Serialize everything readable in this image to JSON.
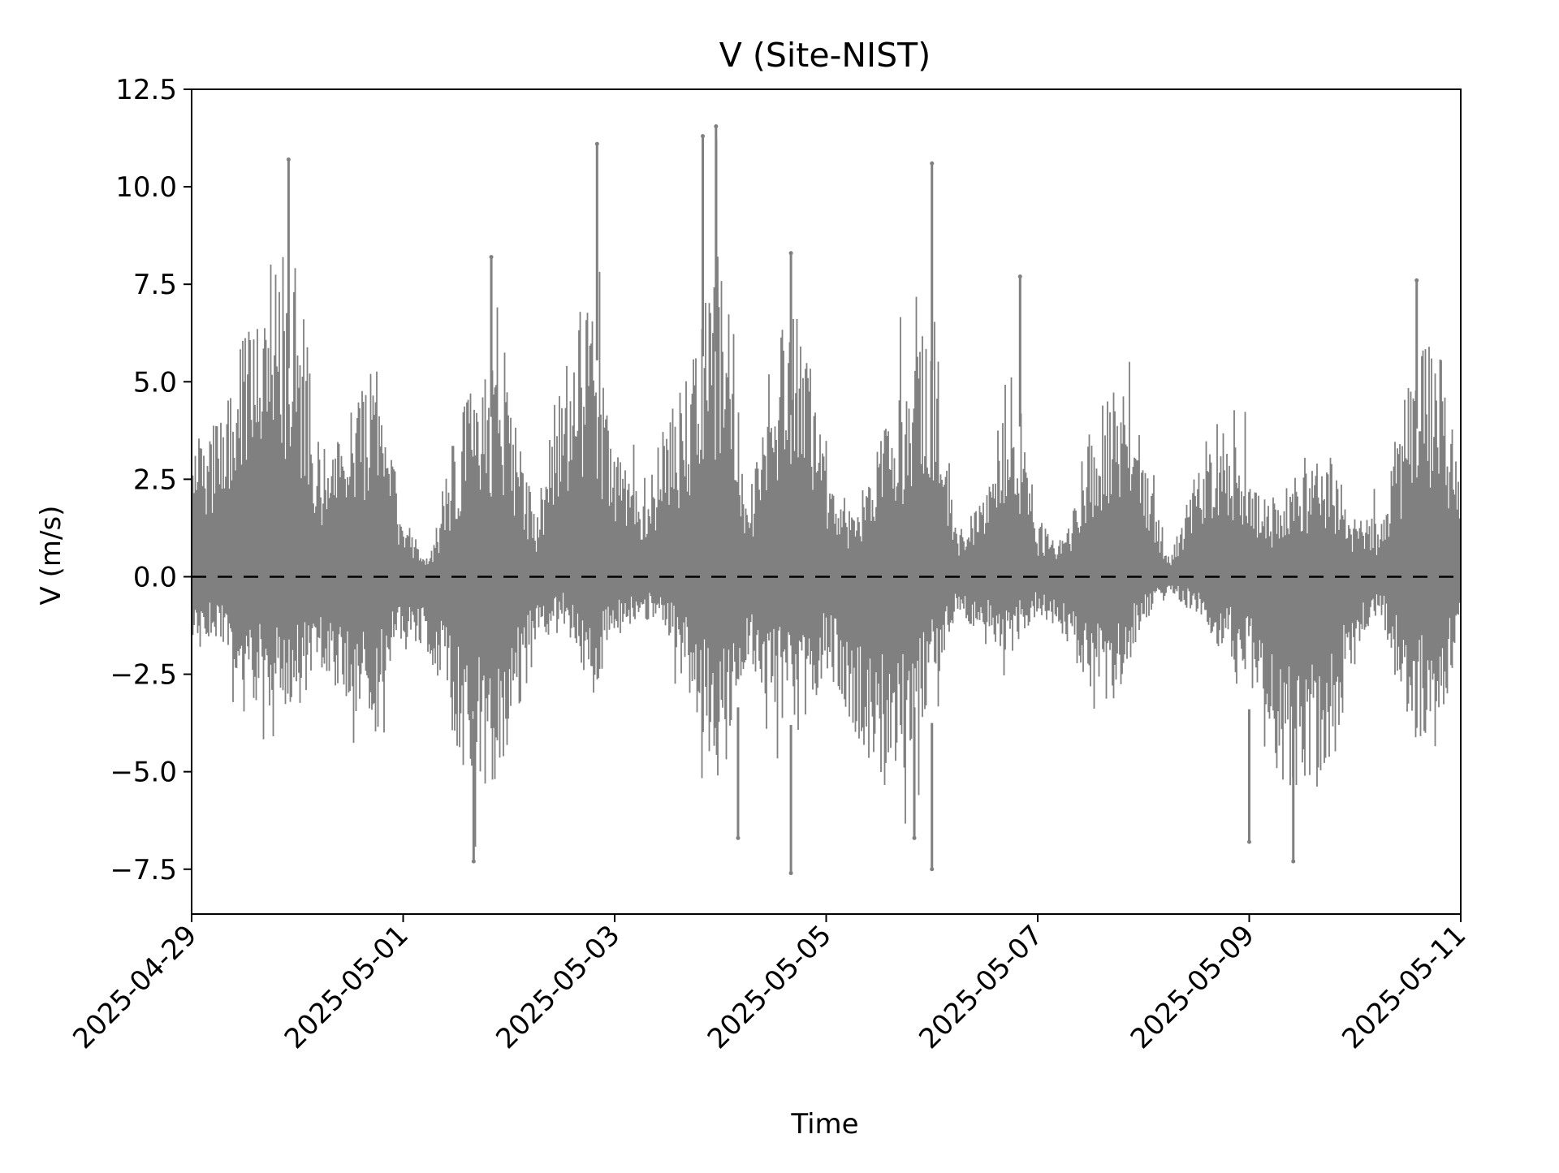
{
  "chart_data": {
    "type": "scatter",
    "title": "V (Site-NIST)",
    "xlabel": "Time",
    "ylabel": "V (m/s)",
    "xlim": [
      "2025-04-29",
      "2025-05-11"
    ],
    "ylim": [
      -8.65,
      12.5
    ],
    "x_ticks": [
      "2025-04-29",
      "2025-05-01",
      "2025-05-03",
      "2025-05-05",
      "2025-05-07",
      "2025-05-09",
      "2025-05-11"
    ],
    "y_ticks": [
      12.5,
      10.0,
      7.5,
      5.0,
      2.5,
      0.0,
      -2.5,
      -5.0,
      -7.5
    ],
    "y_tick_labels": [
      "12.5",
      "10.0",
      "7.5",
      "5.0",
      "2.5",
      "0.0",
      "−2.5",
      "−5.0",
      "−7.5"
    ],
    "reference_line": {
      "y": 0.0,
      "style": "dashed",
      "color": "#000000"
    },
    "series": [
      {
        "color": "#808080",
        "envelope": {
          "t": [
            "2025-04-29T00:00",
            "2025-04-29T06:00",
            "2025-04-29T12:00",
            "2025-04-29T18:00",
            "2025-04-30T00:00",
            "2025-04-30T06:00",
            "2025-04-30T12:00",
            "2025-04-30T18:00",
            "2025-05-01T00:00",
            "2025-05-01T06:00",
            "2025-05-01T12:00",
            "2025-05-01T18:00",
            "2025-05-02T00:00",
            "2025-05-02T06:00",
            "2025-05-02T12:00",
            "2025-05-02T18:00",
            "2025-05-03T00:00",
            "2025-05-03T06:00",
            "2025-05-03T12:00",
            "2025-05-03T18:00",
            "2025-05-04T00:00",
            "2025-05-04T06:00",
            "2025-05-04T12:00",
            "2025-05-04T18:00",
            "2025-05-05T00:00",
            "2025-05-05T06:00",
            "2025-05-05T12:00",
            "2025-05-05T18:00",
            "2025-05-06T00:00",
            "2025-05-06T06:00",
            "2025-05-06T12:00",
            "2025-05-06T18:00",
            "2025-05-07T00:00",
            "2025-05-07T06:00",
            "2025-05-07T12:00",
            "2025-05-07T18:00",
            "2025-05-08T00:00",
            "2025-05-08T06:00",
            "2025-05-08T12:00",
            "2025-05-08T18:00",
            "2025-05-09T00:00",
            "2025-05-09T06:00",
            "2025-05-09T12:00",
            "2025-05-09T18:00",
            "2025-05-10T00:00",
            "2025-05-10T06:00",
            "2025-05-10T12:00",
            "2025-05-10T18:00",
            "2025-05-11T00:00"
          ],
          "upper": [
            3.5,
            4.0,
            6.5,
            8.5,
            8.0,
            2.5,
            4.5,
            5.5,
            1.5,
            0.5,
            4.0,
            5.5,
            5.0,
            1.5,
            5.5,
            7.5,
            3.5,
            2.5,
            4.0,
            6.0,
            9.0,
            2.0,
            6.0,
            7.0,
            3.5,
            1.5,
            3.5,
            5.0,
            7.0,
            1.5,
            2.0,
            6.0,
            1.5,
            1.0,
            4.0,
            5.5,
            3.5,
            0.5,
            3.0,
            4.5,
            2.5,
            2.0,
            3.0,
            3.5,
            1.5,
            1.5,
            5.0,
            6.5,
            3.0
          ],
          "lower": [
            -2.0,
            -1.5,
            -3.0,
            -3.5,
            -3.5,
            -2.5,
            -3.5,
            -4.0,
            -1.5,
            -2.0,
            -4.5,
            -6.0,
            -4.5,
            -2.0,
            -1.0,
            -3.5,
            -1.5,
            -1.0,
            -1.5,
            -3.5,
            -5.5,
            -2.0,
            -3.5,
            -4.0,
            -2.5,
            -4.0,
            -5.5,
            -5.0,
            -3.0,
            -1.0,
            -1.5,
            -2.0,
            -1.0,
            -1.5,
            -3.0,
            -3.5,
            -1.0,
            -0.5,
            -1.0,
            -2.0,
            -2.5,
            -6.0,
            -5.5,
            -5.5,
            -2.0,
            -1.0,
            -4.0,
            -4.5,
            -1.5
          ]
        },
        "spikes": [
          {
            "t": "2025-04-29T22:00",
            "y": 10.7
          },
          {
            "t": "2025-05-01T20:00",
            "y": 8.2
          },
          {
            "t": "2025-05-02T20:00",
            "y": 11.1
          },
          {
            "t": "2025-05-03T20:00",
            "y": 11.3
          },
          {
            "t": "2025-05-03T23:00",
            "y": 11.55
          },
          {
            "t": "2025-05-04T16:00",
            "y": 8.3
          },
          {
            "t": "2025-05-06T00:00",
            "y": 10.6
          },
          {
            "t": "2025-05-06T20:00",
            "y": 7.7
          },
          {
            "t": "2025-05-10T14:00",
            "y": 7.6
          },
          {
            "t": "2025-05-01T16:00",
            "y": -7.3
          },
          {
            "t": "2025-05-04T16:00",
            "y": -7.6
          },
          {
            "t": "2025-05-06T00:00",
            "y": -7.5
          },
          {
            "t": "2025-05-09T10:00",
            "y": -7.3
          },
          {
            "t": "2025-05-09T00:00",
            "y": -6.8
          },
          {
            "t": "2025-05-05T20:00",
            "y": -6.7
          },
          {
            "t": "2025-05-04T04:00",
            "y": -6.7
          }
        ]
      }
    ]
  }
}
